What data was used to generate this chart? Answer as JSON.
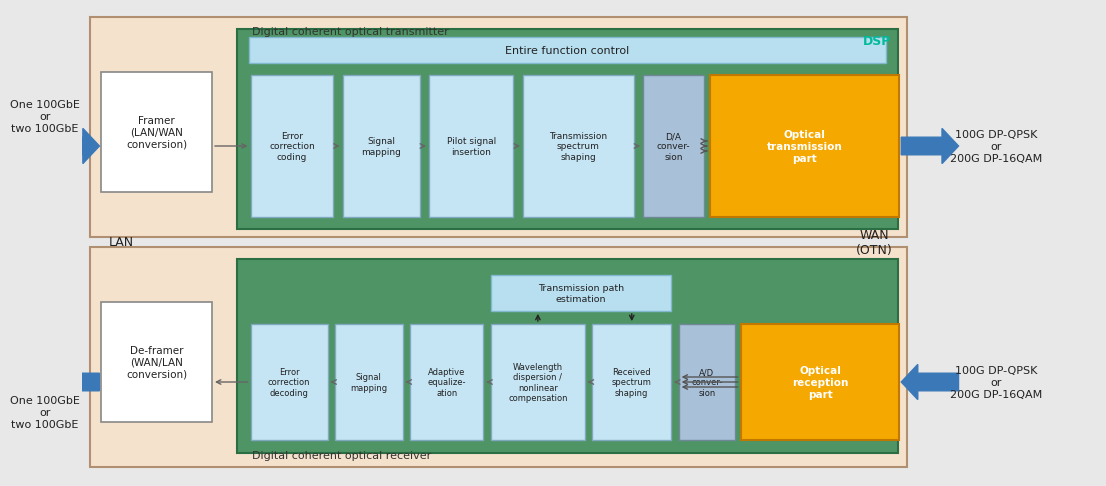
{
  "fig_width": 10.8,
  "fig_height": 4.67,
  "panel_bg": "#f5e2cc",
  "panel_edge": "#b09070",
  "green_bg": "#4e9464",
  "green_edge": "#2a6e44",
  "ctrl_box_fc": "#b8dff0",
  "ctrl_box_ec": "#80b8d0",
  "proc_box_fc": "#c5e5f5",
  "proc_box_ec": "#80a8c0",
  "da_box_fc": "#a8c0d8",
  "da_box_ec": "#708898",
  "orange_fc": "#f5a800",
  "orange_ec": "#c07800",
  "white_fc": "#ffffff",
  "white_ec": "#888888",
  "blue_arrow": "#3a78b8",
  "gray_arrow": "#888888",
  "black_arrow": "#333333",
  "dsp_color": "#00bb99",
  "top_panel_label": "Digital coherent optical transmitter",
  "bottom_panel_label": "Digital coherent optical receiver",
  "dsp_label": "DSP",
  "ctrl_label": "Entire function control",
  "top_left_text": "One 100GbE\nor\ntwo 100GbE",
  "top_right_text": "100G DP-QPSK\nor\n200G DP-16QAM",
  "bot_left_text": "One 100GbE\nor\ntwo 100GbE",
  "bot_right_text": "100G DP-QPSK\nor\n200G DP-16QAM",
  "lan_label": "LAN",
  "wan_label": "WAN\n(OTN)",
  "framer_label": "Framer\n(LAN/WAN\nconversion)",
  "deframer_label": "De-framer\n(WAN/LAN\nconversion)",
  "tx_blocks": [
    "Error\ncorrection\ncoding",
    "Signal\nmapping",
    "Pilot signal\ninsertion",
    "Transmission\nspectrum\nshaping",
    "D/A\nconver-\nsion"
  ],
  "rx_blocks": [
    "Error\ncorrection\ndecoding",
    "Signal\nmapping",
    "Adaptive\nequalize-\nation",
    "Wavelength\ndispersion /\nnonlinear\ncompensation",
    "Received\nspectrum\nshaping",
    "A/D\nconver-\nsion"
  ],
  "tx_optical_label": "Optical\ntransmission\npart",
  "rx_optical_label": "Optical\nreception\npart",
  "path_est_label": "Transmission path\nestimation"
}
